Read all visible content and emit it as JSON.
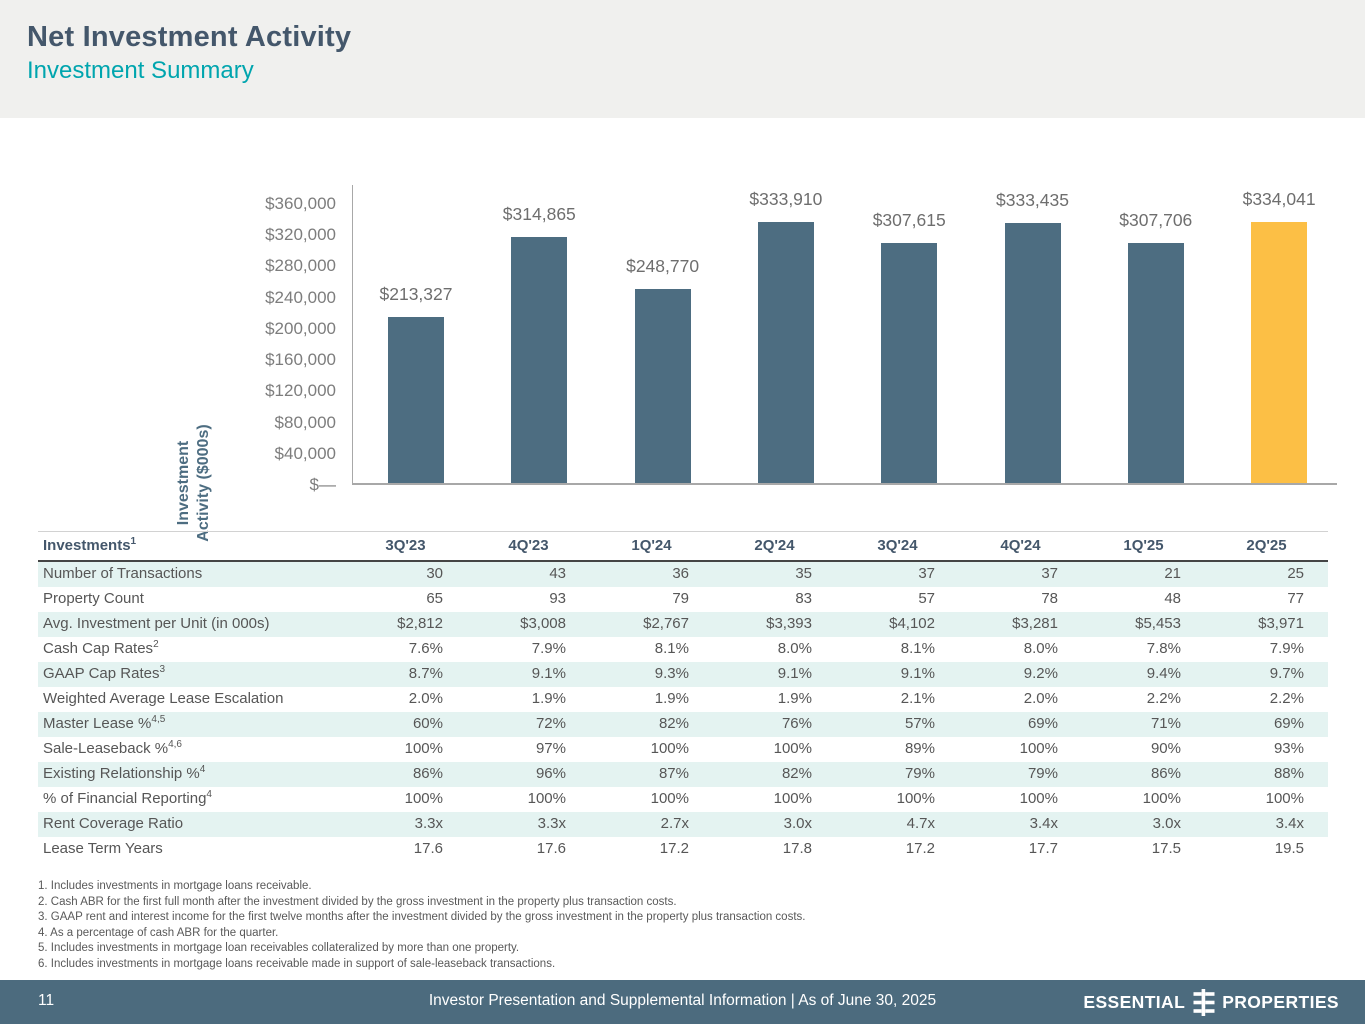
{
  "header": {
    "title": "Net Investment Activity",
    "subtitle": "Investment Summary"
  },
  "chart_data": {
    "type": "bar",
    "title": "",
    "xlabel": "",
    "ylabel": "Investment Activity ($000s)",
    "ylabel_lines": [
      "Investment",
      "Activity ($000s)"
    ],
    "categories": [
      "3Q'23",
      "4Q'23",
      "1Q'24",
      "2Q'24",
      "3Q'24",
      "4Q'24",
      "1Q'25",
      "2Q'25"
    ],
    "values": [
      213327,
      314865,
      248770,
      333910,
      307615,
      333435,
      307706,
      334041
    ],
    "value_labels": [
      "$213,327",
      "$314,865",
      "$248,770",
      "$333,910",
      "$307,615",
      "$333,435",
      "$307,706",
      "$334,041"
    ],
    "ylim": [
      0,
      360000
    ],
    "yticks": [
      {
        "label": "$360,000",
        "value": 360000
      },
      {
        "label": "$320,000",
        "value": 320000
      },
      {
        "label": "$280,000",
        "value": 280000
      },
      {
        "label": "$240,000",
        "value": 240000
      },
      {
        "label": "$200,000",
        "value": 200000
      },
      {
        "label": "$160,000",
        "value": 160000
      },
      {
        "label": "$120,000",
        "value": 120000
      },
      {
        "label": "$80,000",
        "value": 80000
      },
      {
        "label": "$40,000",
        "value": 40000
      },
      {
        "label": "$—",
        "value": 0
      }
    ],
    "grid": false,
    "legend": "none",
    "bar_color": "#4d6d81",
    "highlight_color": "#fcbf45",
    "highlight_index": 7
  },
  "table": {
    "header_label": "Investments",
    "header_sup": "1",
    "columns": [
      "3Q'23",
      "4Q'23",
      "1Q'24",
      "2Q'24",
      "3Q'24",
      "4Q'24",
      "1Q'25",
      "2Q'25"
    ],
    "rows": [
      {
        "label": "Number of Transactions",
        "sup": "",
        "values": [
          "30",
          "43",
          "36",
          "35",
          "37",
          "37",
          "21",
          "25"
        ]
      },
      {
        "label": "Property Count",
        "sup": "",
        "values": [
          "65",
          "93",
          "79",
          "83",
          "57",
          "78",
          "48",
          "77"
        ]
      },
      {
        "label": "Avg. Investment per Unit (in 000s)",
        "sup": "",
        "values": [
          "$2,812",
          "$3,008",
          "$2,767",
          "$3,393",
          "$4,102",
          "$3,281",
          "$5,453",
          "$3,971"
        ]
      },
      {
        "label": "Cash Cap Rates",
        "sup": "2",
        "values": [
          "7.6%",
          "7.9%",
          "8.1%",
          "8.0%",
          "8.1%",
          "8.0%",
          "7.8%",
          "7.9%"
        ]
      },
      {
        "label": "GAAP Cap Rates",
        "sup": "3",
        "values": [
          "8.7%",
          "9.1%",
          "9.3%",
          "9.1%",
          "9.1%",
          "9.2%",
          "9.4%",
          "9.7%"
        ]
      },
      {
        "label": "Weighted Average Lease Escalation",
        "sup": "",
        "values": [
          "2.0%",
          "1.9%",
          "1.9%",
          "1.9%",
          "2.1%",
          "2.0%",
          "2.2%",
          "2.2%"
        ]
      },
      {
        "label": "Master Lease %",
        "sup": "4,5",
        "values": [
          "60%",
          "72%",
          "82%",
          "76%",
          "57%",
          "69%",
          "71%",
          "69%"
        ]
      },
      {
        "label": "Sale-Leaseback %",
        "sup": "4,6",
        "values": [
          "100%",
          "97%",
          "100%",
          "100%",
          "89%",
          "100%",
          "90%",
          "93%"
        ]
      },
      {
        "label": "Existing Relationship %",
        "sup": "4",
        "values": [
          "86%",
          "96%",
          "87%",
          "82%",
          "79%",
          "79%",
          "86%",
          "88%"
        ]
      },
      {
        "label": "% of Financial Reporting",
        "sup": "4",
        "values": [
          "100%",
          "100%",
          "100%",
          "100%",
          "100%",
          "100%",
          "100%",
          "100%"
        ]
      },
      {
        "label": "Rent Coverage Ratio",
        "sup": "",
        "values": [
          "3.3x",
          "3.3x",
          "2.7x",
          "3.0x",
          "4.7x",
          "3.4x",
          "3.0x",
          "3.4x"
        ]
      },
      {
        "label": "Lease Term Years",
        "sup": "",
        "values": [
          "17.6",
          "17.6",
          "17.2",
          "17.8",
          "17.2",
          "17.7",
          "17.5",
          "19.5"
        ]
      }
    ]
  },
  "footnotes": [
    {
      "num": "1.",
      "text": "Includes investments in mortgage loans receivable."
    },
    {
      "num": "2.",
      "text": "Cash ABR for the first full month after the investment divided by the gross investment in the property plus transaction costs."
    },
    {
      "num": "3.",
      "text": "GAAP rent and interest income for the first twelve months after the investment divided by the gross investment in the property plus transaction costs."
    },
    {
      "num": "4.",
      "text": "As a percentage of cash ABR for the quarter."
    },
    {
      "num": "5.",
      "text": "Includes investments in mortgage loan receivables collateralized by more than one property."
    },
    {
      "num": "6.",
      "text": "Includes investments in mortgage loans receivable made in support of sale-leaseback transactions."
    }
  ],
  "footer": {
    "page_number": "11",
    "center_text": "Investor Presentation and Supplemental Information |  As of June 30, 2025",
    "logo_word_left": "ESSENTIAL",
    "logo_word_right": "PROPERTIES"
  },
  "colors": {
    "header_band": "#f0f0ee",
    "title": "#44576b",
    "subtitle_teal": "#00a5ae",
    "bar": "#4d6d81",
    "bar_highlight": "#fcbf45",
    "table_stripe": "#e4f3f1",
    "footer_bg": "#4c6b7e",
    "axis_gray": "#a8a8a8",
    "text_gray": "#595959"
  }
}
